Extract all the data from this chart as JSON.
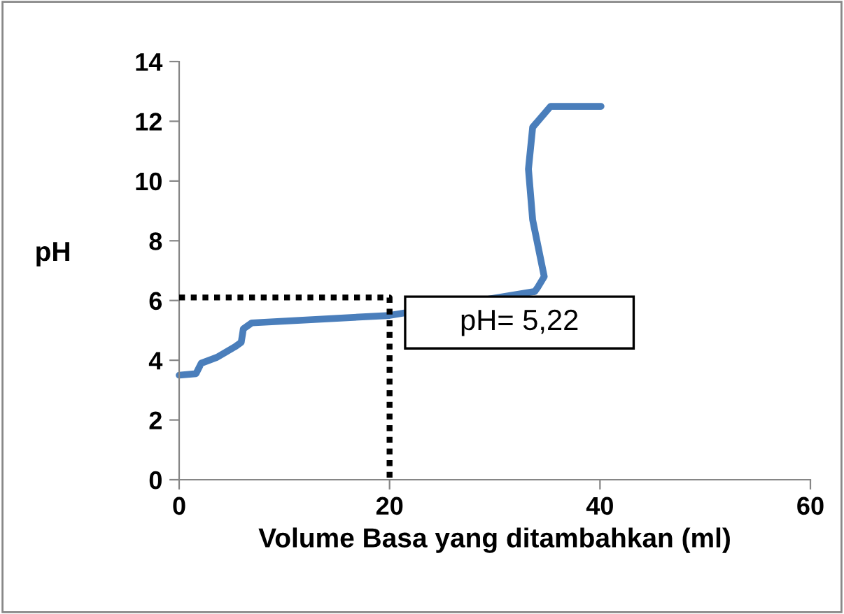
{
  "chart_data": {
    "type": "line",
    "xlabel": "Volume Basa yang ditambahkan (ml)",
    "ylabel": "pH",
    "xlim": [
      0,
      60
    ],
    "xticks": [
      0,
      20,
      40,
      60
    ],
    "ylim": [
      0,
      14
    ],
    "yticks": [
      0,
      2,
      4,
      6,
      8,
      10,
      12,
      14
    ],
    "grid": false,
    "legend": false,
    "marker": "none",
    "series": [
      {
        "color": "#4a7ebb",
        "line_style": "solid",
        "x": [
          0,
          1.6,
          2.1,
          3.6,
          5.3,
          5.9,
          6.1,
          6.9,
          20,
          33.8,
          34.1,
          34.7,
          33.6,
          33.2,
          33.6,
          35.3,
          40.1
        ],
        "values": [
          3.5,
          3.55,
          3.9,
          4.1,
          4.45,
          4.6,
          5.05,
          5.25,
          5.5,
          6.3,
          6.45,
          6.8,
          8.7,
          10.4,
          11.8,
          12.5,
          12.5
        ]
      },
      {
        "color": "#000000",
        "line_style": "dotted",
        "x": [
          0,
          20,
          20
        ],
        "values": [
          6.1,
          6.1,
          0
        ]
      }
    ],
    "annotations": [
      "pH= 5,22"
    ]
  }
}
